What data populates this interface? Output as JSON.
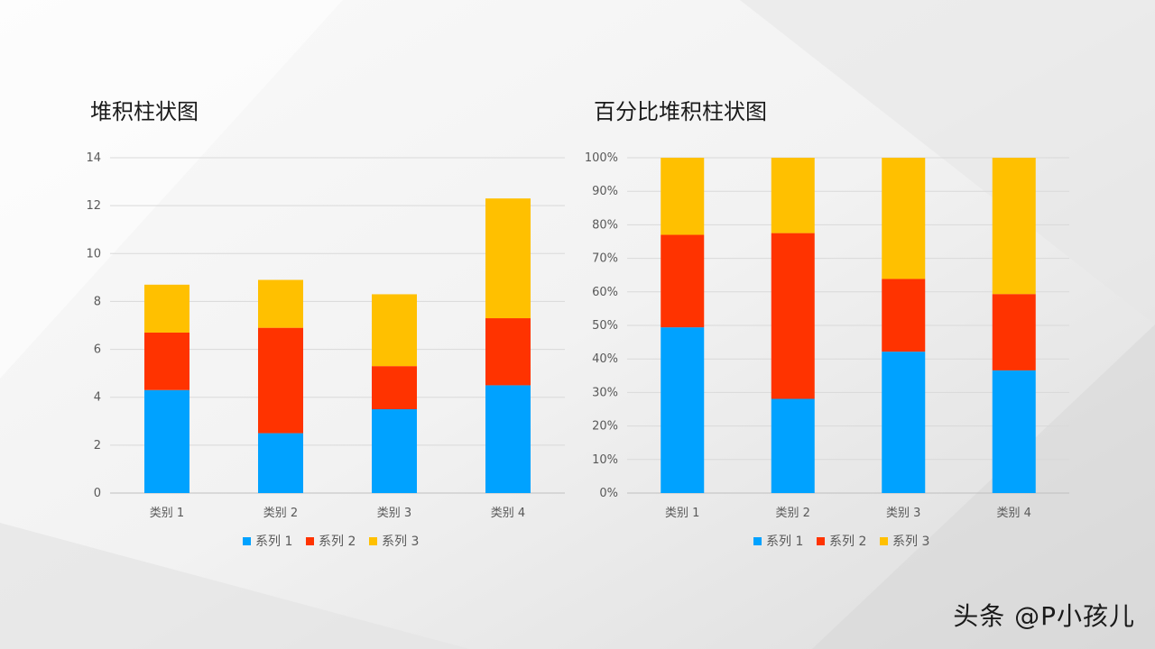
{
  "watermark": "头条 @P小孩儿",
  "colors": {
    "series1": "#00a2ff",
    "series2": "#ff3300",
    "series3": "#ffc000",
    "grid": "#d9d9d9",
    "axis": "#bfbfbf"
  },
  "chart_data": [
    {
      "type": "bar",
      "stacked": true,
      "title": "堆积柱状图",
      "categories": [
        "类别 1",
        "类别 2",
        "类别 3",
        "类别 4"
      ],
      "series": [
        {
          "name": "系列 1",
          "values": [
            4.3,
            2.5,
            3.5,
            4.5
          ]
        },
        {
          "name": "系列 2",
          "values": [
            2.4,
            4.4,
            1.8,
            2.8
          ]
        },
        {
          "name": "系列 3",
          "values": [
            2.0,
            2.0,
            3.0,
            5.0
          ]
        }
      ],
      "ylim": [
        0,
        14
      ],
      "yticks": [
        0,
        2,
        4,
        6,
        8,
        10,
        12,
        14
      ],
      "grid": true,
      "legend": "bottom"
    },
    {
      "type": "bar",
      "stacked": true,
      "percent": true,
      "title": "百分比堆积柱状图",
      "categories": [
        "类别 1",
        "类别 2",
        "类别 3",
        "类别 4"
      ],
      "series": [
        {
          "name": "系列 1",
          "values": [
            4.3,
            2.5,
            3.5,
            4.5
          ]
        },
        {
          "name": "系列 2",
          "values": [
            2.4,
            4.4,
            1.8,
            2.8
          ]
        },
        {
          "name": "系列 3",
          "values": [
            2.0,
            2.0,
            3.0,
            5.0
          ]
        }
      ],
      "ylim": [
        0,
        100
      ],
      "yticks": [
        "0%",
        "10%",
        "20%",
        "30%",
        "40%",
        "50%",
        "60%",
        "70%",
        "80%",
        "90%",
        "100%"
      ],
      "grid": true,
      "legend": "bottom"
    }
  ]
}
